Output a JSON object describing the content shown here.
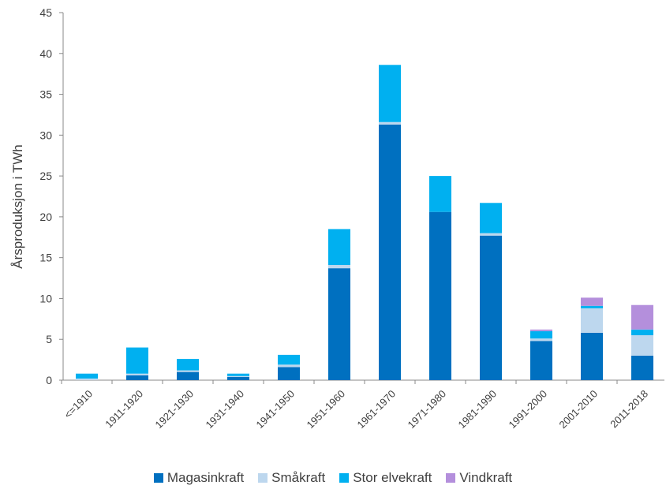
{
  "chart_data": {
    "type": "bar",
    "stacked": true,
    "title": "",
    "xlabel": "",
    "ylabel": "Årsproduksjon i TWh",
    "ylim": [
      0,
      45
    ],
    "yticks": [
      0,
      5,
      10,
      15,
      20,
      25,
      30,
      35,
      40,
      45
    ],
    "grid": false,
    "legend_position": "bottom",
    "categories": [
      "<=1910",
      "1911-1920",
      "1921-1930",
      "1931-1940",
      "1941-1950",
      "1951-1960",
      "1961-1970",
      "1971-1980",
      "1981-1990",
      "1991-2000",
      "2001-2010",
      "2011-2018"
    ],
    "series": [
      {
        "name": "Magasinkraft",
        "color": "#0070C0",
        "values": [
          0.0,
          0.6,
          1.0,
          0.4,
          1.6,
          13.7,
          31.3,
          20.6,
          17.7,
          4.8,
          5.8,
          3.0
        ]
      },
      {
        "name": "Småkraft",
        "color": "#BDD7EE",
        "values": [
          0.2,
          0.2,
          0.2,
          0.1,
          0.3,
          0.4,
          0.3,
          0.0,
          0.3,
          0.3,
          3.0,
          2.5
        ]
      },
      {
        "name": "Stor elvekraft",
        "color": "#00B0F0",
        "values": [
          0.6,
          3.2,
          1.4,
          0.3,
          1.2,
          4.4,
          7.0,
          4.4,
          3.7,
          0.9,
          0.3,
          0.7
        ]
      },
      {
        "name": "Vindkraft",
        "color": "#B48FDC",
        "values": [
          0.0,
          0.0,
          0.0,
          0.0,
          0.0,
          0.0,
          0.0,
          0.0,
          0.0,
          0.2,
          1.0,
          3.0
        ]
      }
    ]
  }
}
